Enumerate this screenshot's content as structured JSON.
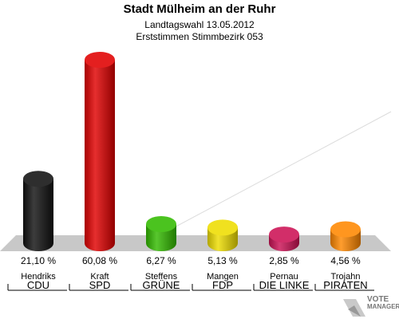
{
  "title": "Stadt Mülheim an der Ruhr",
  "subtitle": "Landtagswahl 13.05.2012",
  "subtitle2": "Erststimmen Stimmbezirk 053",
  "logo": {
    "line1": "VOTE",
    "line2": "MANAGER"
  },
  "chart_data": {
    "type": "bar",
    "title": "Stadt Mülheim an der Ruhr",
    "subtitle": "Landtagswahl 13.05.2012 — Erststimmen Stimmbezirk 053",
    "categories": [
      "CDU",
      "SPD",
      "GRÜNE",
      "FDP",
      "DIE LINKE",
      "PIRATEN"
    ],
    "candidates": [
      "Hendriks",
      "Kraft",
      "Steffens",
      "Mangen",
      "Pernau",
      "Trojahn"
    ],
    "values": [
      21.1,
      60.08,
      6.27,
      5.13,
      2.85,
      4.56
    ],
    "value_labels": [
      "21,10 %",
      "60,08 %",
      "6,27 %",
      "5,13 %",
      "2,85 %",
      "4,56 %"
    ],
    "colors": [
      "#111111",
      "#e00000",
      "#33bb00",
      "#eedd00",
      "#cc1155",
      "#ff8800"
    ],
    "ylim": [
      0,
      60.08
    ],
    "grid": false
  }
}
